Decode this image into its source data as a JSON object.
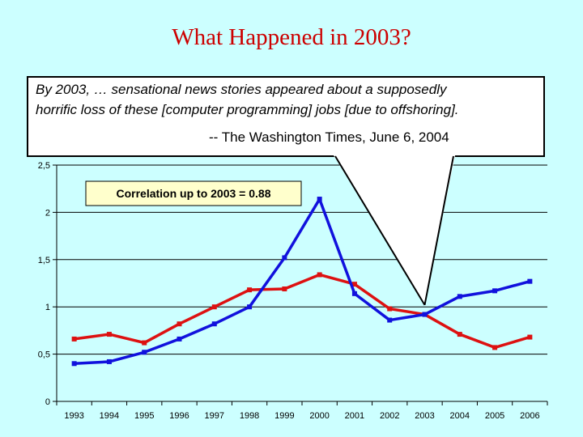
{
  "slide": {
    "title": "What Happened in 2003?"
  },
  "callout": {
    "line1": "By 2003, … sensational news stories appeared about a supposedly",
    "line2": "horrific loss of these [computer programming] jobs [due to offshoring].",
    "source": "-- The Washington Times, June 6, 2004"
  },
  "colors": {
    "red_series": "#dd1111",
    "blue_series": "#1111dd",
    "background": "#ccffff"
  },
  "chart_data": {
    "type": "line",
    "title": "",
    "xlabel": "",
    "ylabel": "",
    "categories": [
      "1993",
      "1994",
      "1995",
      "1996",
      "1997",
      "1998",
      "1999",
      "2000",
      "2001",
      "2002",
      "2003",
      "2004",
      "2005",
      "2006"
    ],
    "series": [
      {
        "name": "red",
        "color": "#dd1111",
        "values": [
          0.66,
          0.71,
          0.62,
          0.82,
          1.0,
          1.18,
          1.19,
          1.34,
          1.24,
          0.98,
          0.92,
          0.71,
          0.57,
          0.68
        ]
      },
      {
        "name": "blue",
        "color": "#1111dd",
        "values": [
          0.4,
          0.42,
          0.52,
          0.66,
          0.82,
          1.0,
          1.52,
          2.14,
          1.14,
          0.86,
          0.92,
          1.11,
          1.17,
          1.27
        ]
      }
    ],
    "ylim": [
      0,
      2.5
    ],
    "yticks": [
      0,
      0.5,
      1,
      1.5,
      2,
      2.5
    ],
    "ytick_labels": [
      "0",
      "0,5",
      "1",
      "1,5",
      "2",
      "2,5"
    ],
    "annotation": "Correlation up to 2003  = 0.88",
    "grid": true
  }
}
